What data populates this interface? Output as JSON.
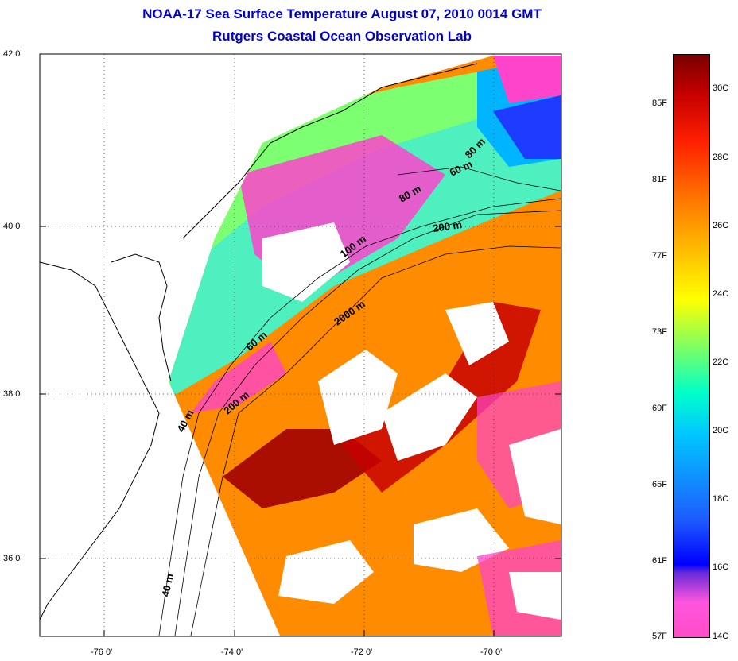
{
  "header": {
    "title": "NOAA-17 Sea Surface Temperature August 07, 2010 0014 GMT",
    "subtitle": "Rutgers Coastal Ocean Observation Lab"
  },
  "axes": {
    "lat_labels": [
      "42 0'",
      "40 0'",
      "38 0'",
      "36 0'"
    ],
    "lon_labels": [
      "-76 0'",
      "-74 0'",
      "-72 0'",
      "-70 0'"
    ]
  },
  "contours": {
    "labels": [
      "80 m",
      "60 m",
      "80 m",
      "200 m",
      "100 m",
      "2000 m",
      "60 m",
      "200 m",
      "40 m",
      "40 m"
    ]
  },
  "colorbar": {
    "fahrenheit": [
      "85F",
      "81F",
      "77F",
      "73F",
      "69F",
      "65F",
      "61F",
      "57F"
    ],
    "celsius": [
      "30C",
      "28C",
      "26C",
      "24C",
      "22C",
      "20C",
      "18C",
      "16C",
      "14C"
    ]
  },
  "colors": {
    "title": "#0000cc",
    "warm": "#ff8c00",
    "hot": "#c00000",
    "cool": "#00ffc8",
    "cold": "#0000ff",
    "cloud": "#ff44cc"
  }
}
